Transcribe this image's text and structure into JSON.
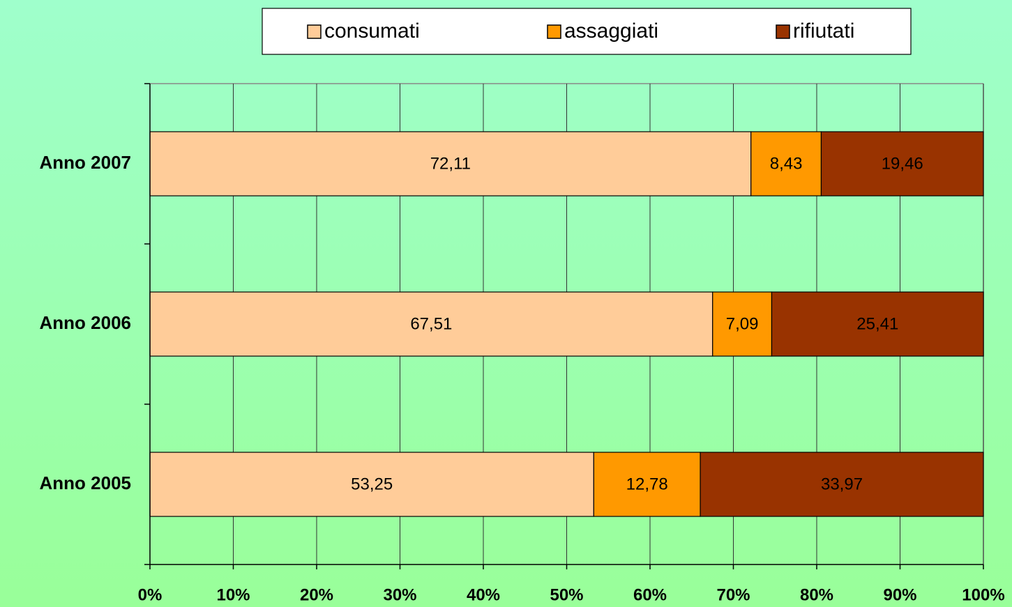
{
  "chart_data": {
    "type": "stacked_bar_horizontal",
    "categories": [
      "Anno 2005",
      "Anno 2006",
      "Anno 2007"
    ],
    "series": [
      {
        "name": "consumati",
        "color": "#ffcc99",
        "values": [
          53.25,
          67.51,
          72.11
        ],
        "value_labels": [
          "53,25",
          "67,51",
          "72,11"
        ]
      },
      {
        "name": "assaggiati",
        "color": "#ff9900",
        "values": [
          12.78,
          7.09,
          8.43
        ],
        "value_labels": [
          "12,78",
          "7,09",
          "8,43"
        ]
      },
      {
        "name": "rifiutati",
        "color": "#993300",
        "values": [
          33.97,
          25.41,
          19.46
        ],
        "value_labels": [
          "33,97",
          "25,41",
          "19,46"
        ]
      }
    ],
    "xlim": [
      0,
      100
    ],
    "xticks": [
      {
        "value": 0,
        "label": "0%"
      },
      {
        "value": 10,
        "label": "10%"
      },
      {
        "value": 20,
        "label": "20%"
      },
      {
        "value": 30,
        "label": "30%"
      },
      {
        "value": 40,
        "label": "40%"
      },
      {
        "value": 50,
        "label": "50%"
      },
      {
        "value": 60,
        "label": "60%"
      },
      {
        "value": 70,
        "label": "70%"
      },
      {
        "value": 80,
        "label": "80%"
      },
      {
        "value": 90,
        "label": "90%"
      },
      {
        "value": 100,
        "label": "100%"
      }
    ],
    "grid": true,
    "legend": "top"
  }
}
